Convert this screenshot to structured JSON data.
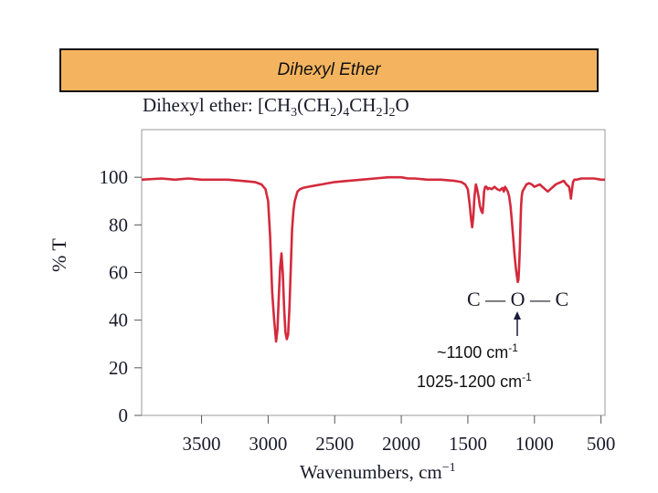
{
  "banner": {
    "title": "Dihexyl Ether"
  },
  "chart_data": {
    "type": "line",
    "title": {
      "prefix": "Dihexyl ether: [CH",
      "sub1": "3",
      "mid1": "(CH",
      "sub2": "2",
      "mid2": ")",
      "sub3": "4",
      "mid3": "CH",
      "sub4": "2",
      "mid4": "]",
      "sub5": "2",
      "suffix": "O"
    },
    "xlabel": {
      "text": "Wavenumbers, cm",
      "sup": "−1"
    },
    "ylabel": "% T",
    "xlim": [
      3950,
      470
    ],
    "ylim": [
      0,
      120
    ],
    "xticks": [
      3500,
      3000,
      2500,
      2000,
      1500,
      1000,
      500
    ],
    "yticks": [
      0,
      20,
      40,
      60,
      80,
      100
    ],
    "line_color": "#d42a3c",
    "series": [
      {
        "x": [
          3950,
          3800,
          3700,
          3600,
          3500,
          3400,
          3300,
          3200,
          3100,
          3050,
          3020,
          3000,
          2985,
          2970,
          2955,
          2940,
          2930,
          2920,
          2910,
          2900,
          2890,
          2880,
          2870,
          2860,
          2850,
          2840,
          2830,
          2820,
          2810,
          2800,
          2790,
          2780,
          2760,
          2740,
          2700,
          2650,
          2600,
          2500,
          2400,
          2300,
          2200,
          2100,
          2000,
          1950,
          1900,
          1800,
          1700,
          1600,
          1550,
          1520,
          1500,
          1485,
          1475,
          1467,
          1460,
          1450,
          1440,
          1430,
          1420,
          1410,
          1400,
          1390,
          1385,
          1378,
          1370,
          1360,
          1350,
          1340,
          1320,
          1300,
          1280,
          1260,
          1240,
          1230,
          1220,
          1210,
          1200,
          1190,
          1180,
          1170,
          1160,
          1150,
          1140,
          1130,
          1125,
          1120,
          1115,
          1110,
          1105,
          1100,
          1095,
          1090,
          1080,
          1070,
          1060,
          1040,
          1020,
          1000,
          980,
          960,
          940,
          920,
          900,
          880,
          860,
          840,
          820,
          800,
          780,
          760,
          740,
          730,
          726,
          722,
          715,
          710,
          700,
          680,
          650,
          600,
          550,
          500,
          470
        ],
        "y": [
          99,
          99.5,
          99,
          99.5,
          99,
          99,
          99,
          98.5,
          98,
          97,
          95,
          90,
          75,
          52,
          40,
          31,
          36,
          50,
          62,
          68,
          60,
          45,
          35,
          32,
          34,
          45,
          62,
          78,
          86,
          90,
          92,
          94,
          95,
          95.5,
          96,
          96.5,
          97,
          98,
          98.5,
          99,
          99.5,
          100,
          100,
          99.5,
          99.5,
          99,
          99,
          98.5,
          98,
          97,
          95,
          88,
          82,
          79,
          83,
          92,
          97,
          95,
          92,
          88,
          86,
          85,
          88,
          94,
          96,
          96,
          95,
          95.5,
          95,
          96,
          95,
          94.5,
          95.5,
          94,
          96,
          95,
          94,
          92,
          88,
          82,
          75,
          68,
          62,
          58,
          56,
          57,
          62,
          70,
          80,
          88,
          92,
          94,
          95,
          96,
          97,
          97.5,
          97,
          96,
          96.5,
          97,
          96,
          95,
          94,
          95,
          96,
          97,
          97.5,
          98,
          98.5,
          97,
          96,
          93,
          91,
          93,
          96,
          98,
          99,
          99,
          99.5,
          99.5,
          99.5,
          99,
          99
        ]
      }
    ],
    "structure": "C — O — C",
    "annotation_primary": {
      "text": "~1100 cm",
      "sup": "-1"
    },
    "annotation_range": {
      "text": "1025-1200 cm",
      "sup": "-1"
    }
  }
}
